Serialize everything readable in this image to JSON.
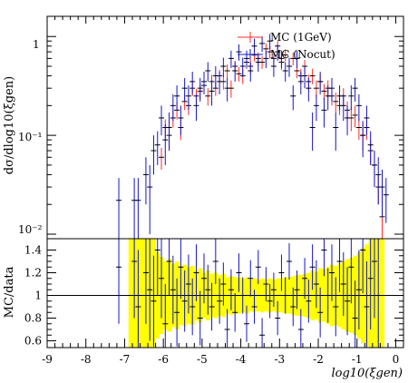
{
  "colors": {
    "mc_1gev": "#ff2a2a",
    "mc_nocut": "#1414c8",
    "band": "#ffff00",
    "frame": "#000000"
  },
  "chart_data": [
    {
      "type": "scatter",
      "title": "",
      "ylabel": "dσ/dlog10(ξgen)",
      "yscale": "log",
      "xlim": [
        -9,
        0.2
      ],
      "ylim": [
        0.009,
        1.6
      ],
      "y_tick_labels": [
        "10⁻²",
        "10⁻¹",
        "1"
      ],
      "legend_position": "top-right",
      "series": [
        {
          "name": "MC (1GeV)",
          "x": [
            -6.05,
            -5.95,
            -5.85,
            -5.75,
            -5.65,
            -5.55,
            -5.45,
            -5.35,
            -5.25,
            -5.15,
            -5.05,
            -4.95,
            -4.85,
            -4.75,
            -4.65,
            -4.55,
            -4.45,
            -4.35,
            -4.25,
            -4.15,
            -4.05,
            -3.95,
            -3.85,
            -3.75,
            -3.65,
            -3.55,
            -3.45,
            -3.35,
            -3.25,
            -3.15,
            -3.05,
            -2.95,
            -2.85,
            -2.75,
            -2.65,
            -2.55,
            -2.45,
            -2.35,
            -2.25,
            -2.15,
            -2.05,
            -1.95,
            -1.85,
            -1.75,
            -1.65,
            -1.55,
            -1.45,
            -1.35,
            -1.25,
            -1.15,
            -1.05,
            -0.95,
            -0.85,
            -0.75,
            -0.65,
            -0.55,
            -0.45,
            -0.35
          ],
          "values": [
            0.06,
            0.12,
            0.1,
            0.15,
            0.18,
            0.12,
            0.22,
            0.2,
            0.3,
            0.25,
            0.28,
            0.32,
            0.25,
            0.35,
            0.3,
            0.4,
            0.35,
            0.45,
            0.3,
            0.5,
            0.42,
            0.4,
            0.55,
            0.5,
            0.65,
            0.6,
            0.55,
            0.75,
            0.7,
            0.6,
            0.8,
            0.55,
            0.65,
            0.5,
            0.6,
            0.45,
            0.4,
            0.5,
            0.35,
            0.4,
            0.3,
            0.35,
            0.28,
            0.3,
            0.25,
            0.22,
            0.2,
            0.25,
            0.18,
            0.15,
            0.16,
            0.12,
            0.1,
            0.12,
            0.07,
            0.05,
            0.03,
            0.015
          ],
          "errors": [
            0.015,
            0.025,
            0.025,
            0.03,
            0.035,
            0.03,
            0.04,
            0.04,
            0.05,
            0.045,
            0.05,
            0.05,
            0.05,
            0.06,
            0.05,
            0.06,
            0.06,
            0.07,
            0.06,
            0.07,
            0.07,
            0.07,
            0.08,
            0.08,
            0.09,
            0.09,
            0.08,
            0.1,
            0.1,
            0.09,
            0.1,
            0.09,
            0.09,
            0.08,
            0.09,
            0.07,
            0.07,
            0.08,
            0.06,
            0.07,
            0.06,
            0.06,
            0.05,
            0.06,
            0.05,
            0.05,
            0.04,
            0.05,
            0.04,
            0.04,
            0.04,
            0.03,
            0.03,
            0.03,
            0.02,
            0.015,
            0.01,
            0.008
          ]
        },
        {
          "name": "MC (Nocut)",
          "x": [
            -7.15,
            -6.75,
            -6.65,
            -6.45,
            -6.35,
            -6.25,
            -6.15,
            -6.05,
            -5.95,
            -5.85,
            -5.75,
            -5.65,
            -5.55,
            -5.45,
            -5.35,
            -5.25,
            -5.15,
            -5.05,
            -4.95,
            -4.85,
            -4.75,
            -4.65,
            -4.55,
            -4.45,
            -4.35,
            -4.25,
            -4.15,
            -4.05,
            -3.95,
            -3.85,
            -3.75,
            -3.65,
            -3.55,
            -3.45,
            -3.35,
            -3.25,
            -3.15,
            -3.05,
            -2.95,
            -2.85,
            -2.75,
            -2.65,
            -2.55,
            -2.45,
            -2.35,
            -2.25,
            -2.15,
            -2.05,
            -1.95,
            -1.85,
            -1.75,
            -1.65,
            -1.55,
            -1.45,
            -1.35,
            -1.25,
            -1.15,
            -1.05,
            -0.95,
            -0.85,
            -0.75,
            -0.65,
            -0.55,
            -0.45,
            -0.35,
            -0.25
          ],
          "values": [
            0.022,
            0.022,
            0.022,
            0.04,
            0.03,
            0.07,
            0.08,
            0.15,
            0.09,
            0.12,
            0.2,
            0.25,
            0.15,
            0.3,
            0.25,
            0.35,
            0.2,
            0.3,
            0.35,
            0.45,
            0.28,
            0.4,
            0.35,
            0.5,
            0.3,
            0.6,
            0.45,
            0.7,
            0.5,
            0.6,
            0.45,
            0.8,
            0.55,
            0.85,
            0.6,
            0.9,
            0.5,
            0.7,
            0.6,
            0.45,
            0.5,
            0.25,
            0.6,
            0.35,
            0.4,
            0.3,
            0.12,
            0.2,
            0.35,
            0.18,
            0.25,
            0.3,
            0.12,
            0.25,
            0.2,
            0.15,
            0.25,
            0.3,
            0.2,
            0.1,
            0.15,
            0.08,
            0.05,
            0.04,
            0.03,
            0.025
          ],
          "errors": [
            0.015,
            0.015,
            0.015,
            0.02,
            0.02,
            0.03,
            0.03,
            0.05,
            0.04,
            0.05,
            0.06,
            0.07,
            0.05,
            0.08,
            0.07,
            0.09,
            0.06,
            0.08,
            0.09,
            0.1,
            0.08,
            0.1,
            0.09,
            0.11,
            0.08,
            0.12,
            0.1,
            0.13,
            0.11,
            0.12,
            0.1,
            0.15,
            0.11,
            0.15,
            0.12,
            0.16,
            0.11,
            0.13,
            0.12,
            0.1,
            0.11,
            0.07,
            0.12,
            0.09,
            0.1,
            0.08,
            0.05,
            0.06,
            0.09,
            0.06,
            0.07,
            0.08,
            0.05,
            0.07,
            0.06,
            0.05,
            0.07,
            0.08,
            0.06,
            0.04,
            0.05,
            0.03,
            0.02,
            0.02,
            0.015,
            0.012
          ]
        }
      ]
    },
    {
      "type": "scatter",
      "ylabel": "MC/data",
      "xlabel": "log10(ξgen)",
      "xlim": [
        -9,
        0.2
      ],
      "ylim": [
        0.54,
        1.5
      ],
      "x_tick_labels": [
        "-9",
        "-8",
        "-7",
        "-6",
        "-5",
        "-4",
        "-3",
        "-2",
        "-1",
        "0"
      ],
      "y_tick_labels": [
        "0.6",
        "0.8",
        "1",
        "1.2",
        "1.4"
      ],
      "reference_line": 1,
      "band": {
        "x": [
          -6.85,
          -6.75,
          -6.65,
          -6.55,
          -6.45,
          -6.35,
          -6.25,
          -6.15,
          -6.05,
          -5.95,
          -5.85,
          -5.75,
          -5.65,
          -5.55,
          -5.45,
          -5.35,
          -5.25,
          -5.15,
          -5.05,
          -4.95,
          -4.85,
          -4.75,
          -4.65,
          -4.55,
          -4.45,
          -4.35,
          -4.25,
          -4.15,
          -4.05,
          -3.95,
          -3.85,
          -3.75,
          -3.65,
          -3.55,
          -3.45,
          -3.35,
          -3.25,
          -3.15,
          -3.05,
          -2.95,
          -2.85,
          -2.75,
          -2.65,
          -2.55,
          -2.45,
          -2.35,
          -2.25,
          -2.15,
          -2.05,
          -1.95,
          -1.85,
          -1.75,
          -1.65,
          -1.55,
          -1.45,
          -1.35,
          -1.25,
          -1.15,
          -1.05,
          -0.95,
          -0.85,
          -0.75,
          -0.65,
          -0.55,
          -0.45,
          -0.35
        ],
        "half_width": [
          0.5,
          0.5,
          0.5,
          0.5,
          0.5,
          0.5,
          0.5,
          0.38,
          0.34,
          0.3,
          0.32,
          0.28,
          0.3,
          0.26,
          0.27,
          0.25,
          0.26,
          0.22,
          0.24,
          0.2,
          0.22,
          0.19,
          0.2,
          0.18,
          0.19,
          0.16,
          0.17,
          0.16,
          0.16,
          0.15,
          0.16,
          0.14,
          0.15,
          0.14,
          0.15,
          0.14,
          0.15,
          0.14,
          0.15,
          0.15,
          0.16,
          0.16,
          0.17,
          0.18,
          0.18,
          0.19,
          0.2,
          0.22,
          0.21,
          0.24,
          0.23,
          0.25,
          0.27,
          0.26,
          0.28,
          0.3,
          0.32,
          0.33,
          0.35,
          0.38,
          0.42,
          0.45,
          0.5,
          0.5,
          0.5,
          0.5
        ]
      },
      "series": [
        {
          "name": "MC (Nocut)",
          "x": [
            -7.15,
            -6.75,
            -6.65,
            -6.45,
            -6.35,
            -6.25,
            -6.15,
            -6.05,
            -5.95,
            -5.85,
            -5.75,
            -5.65,
            -5.55,
            -5.45,
            -5.35,
            -5.25,
            -5.15,
            -5.05,
            -4.95,
            -4.85,
            -4.75,
            -4.65,
            -4.55,
            -4.45,
            -4.35,
            -4.25,
            -4.15,
            -4.05,
            -3.95,
            -3.85,
            -3.75,
            -3.65,
            -3.55,
            -3.45,
            -3.35,
            -3.25,
            -3.15,
            -3.05,
            -2.95,
            -2.85,
            -2.75,
            -2.65,
            -2.55,
            -2.45,
            -2.35,
            -2.25,
            -2.15,
            -2.05,
            -1.95,
            -1.85,
            -1.75,
            -1.65,
            -1.55,
            -1.45,
            -1.35,
            -1.25,
            -1.15,
            -1.05,
            -0.95,
            -0.85,
            -0.75,
            -0.65,
            -0.55,
            -0.45
          ],
          "values": [
            1.25,
            1.3,
            0.9,
            1.2,
            1.05,
            0.95,
            1.4,
            1.15,
            0.75,
            1.3,
            1.05,
            0.85,
            1.25,
            0.95,
            1.1,
            0.9,
            1.2,
            0.8,
            1.15,
            1.05,
            0.9,
            1.3,
            0.95,
            1.1,
            0.7,
            1.05,
            0.85,
            1.2,
            1.0,
            0.75,
            1.15,
            0.9,
            1.25,
            0.65,
            1.1,
            0.95,
            1.05,
            0.8,
            1.2,
            1.0,
            1.3,
            0.9,
            1.05,
            0.7,
            1.15,
            0.95,
            1.25,
            1.1,
            0.85,
            1.4,
            1.0,
            1.2,
            0.9,
            1.3,
            1.1,
            0.95,
            1.25,
            0.8,
            1.05,
            1.4,
            0.9,
            1.15,
            1.3,
            1.0
          ],
          "errors": [
            0.5,
            0.5,
            0.5,
            0.45,
            0.45,
            0.4,
            0.4,
            0.35,
            0.35,
            0.3,
            0.3,
            0.3,
            0.28,
            0.27,
            0.26,
            0.25,
            0.25,
            0.24,
            0.22,
            0.22,
            0.21,
            0.2,
            0.2,
            0.19,
            0.18,
            0.18,
            0.17,
            0.17,
            0.16,
            0.16,
            0.16,
            0.15,
            0.15,
            0.15,
            0.15,
            0.15,
            0.15,
            0.15,
            0.16,
            0.16,
            0.16,
            0.17,
            0.17,
            0.18,
            0.18,
            0.19,
            0.2,
            0.21,
            0.22,
            0.23,
            0.24,
            0.25,
            0.26,
            0.27,
            0.28,
            0.3,
            0.32,
            0.33,
            0.35,
            0.38,
            0.4,
            0.45,
            0.5,
            0.5
          ]
        }
      ]
    }
  ]
}
